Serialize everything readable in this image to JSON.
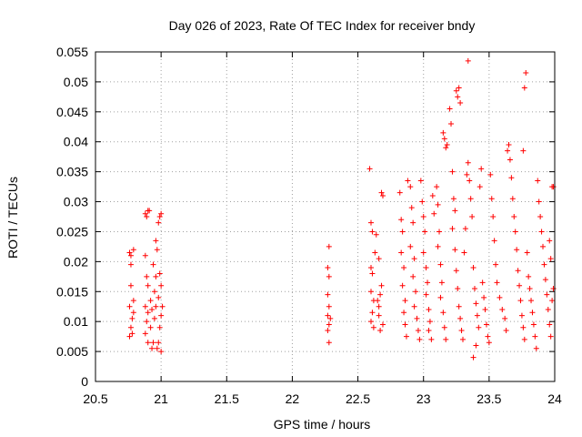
{
  "chart_data": {
    "type": "scatter",
    "title": "Day 026 of 2023, Rate Of TEC Index for receiver bndy",
    "xlabel": "GPS time / hours",
    "ylabel": "ROTI / TECUs",
    "xlim": [
      20.5,
      24
    ],
    "ylim": [
      0,
      0.055
    ],
    "xticks": [
      "20.5",
      "21",
      "21.5",
      "22",
      "22.5",
      "23",
      "23.5",
      "24"
    ],
    "yticks": [
      "0",
      "0.005",
      "0.01",
      "0.015",
      "0.02",
      "0.025",
      "0.03",
      "0.035",
      "0.04",
      "0.045",
      "0.05",
      "0.055"
    ],
    "grid": true,
    "marker": "+",
    "color": "#ff0000",
    "series": [
      {
        "points": [
          [
            20.76,
            0.0215
          ],
          [
            20.77,
            0.021
          ],
          [
            20.77,
            0.016
          ],
          [
            20.76,
            0.0125
          ],
          [
            20.78,
            0.0105
          ],
          [
            20.77,
            0.009
          ],
          [
            20.76,
            0.0075
          ],
          [
            20.78,
            0.008
          ],
          [
            20.79,
            0.022
          ],
          [
            20.79,
            0.0115
          ],
          [
            20.77,
            0.0195
          ],
          [
            20.79,
            0.0135
          ],
          [
            20.88,
            0.028
          ],
          [
            20.89,
            0.0275
          ],
          [
            20.9,
            0.0285
          ],
          [
            20.91,
            0.0285
          ],
          [
            20.88,
            0.021
          ],
          [
            20.89,
            0.0175
          ],
          [
            20.9,
            0.016
          ],
          [
            20.88,
            0.0125
          ],
          [
            20.9,
            0.0115
          ],
          [
            20.89,
            0.01
          ],
          [
            20.88,
            0.008
          ],
          [
            20.9,
            0.0065
          ],
          [
            20.92,
            0.0135
          ],
          [
            20.93,
            0.012
          ],
          [
            20.92,
            0.009
          ],
          [
            20.94,
            0.0065
          ],
          [
            20.93,
            0.0055
          ],
          [
            20.95,
            0.0105
          ],
          [
            20.96,
            0.0125
          ],
          [
            20.95,
            0.015
          ],
          [
            20.96,
            0.0175
          ],
          [
            20.97,
            0.022
          ],
          [
            20.98,
            0.0265
          ],
          [
            20.99,
            0.0275
          ],
          [
            21.0,
            0.028
          ],
          [
            20.99,
            0.018
          ],
          [
            20.98,
            0.014
          ],
          [
            21.0,
            0.011
          ],
          [
            20.99,
            0.009
          ],
          [
            20.98,
            0.0065
          ],
          [
            21.0,
            0.005
          ],
          [
            20.97,
            0.0055
          ],
          [
            21.01,
            0.0125
          ],
          [
            21.0,
            0.016
          ],
          [
            20.96,
            0.0235
          ],
          [
            20.94,
            0.0195
          ],
          [
            22.28,
            0.0225
          ],
          [
            22.27,
            0.019
          ],
          [
            22.28,
            0.0175
          ],
          [
            22.27,
            0.0145
          ],
          [
            22.28,
            0.0125
          ],
          [
            22.27,
            0.011
          ],
          [
            22.28,
            0.0095
          ],
          [
            22.27,
            0.0085
          ],
          [
            22.28,
            0.0065
          ],
          [
            22.29,
            0.0105
          ],
          [
            22.59,
            0.0355
          ],
          [
            22.6,
            0.0265
          ],
          [
            22.61,
            0.025
          ],
          [
            22.6,
            0.019
          ],
          [
            22.61,
            0.018
          ],
          [
            22.6,
            0.015
          ],
          [
            22.62,
            0.0135
          ],
          [
            22.61,
            0.0115
          ],
          [
            22.6,
            0.01
          ],
          [
            22.62,
            0.009
          ],
          [
            22.63,
            0.0215
          ],
          [
            22.64,
            0.0245
          ],
          [
            22.65,
            0.0135
          ],
          [
            22.66,
            0.011
          ],
          [
            22.67,
            0.0085
          ],
          [
            22.66,
            0.0125
          ],
          [
            22.67,
            0.0145
          ],
          [
            22.68,
            0.0315
          ],
          [
            22.69,
            0.031
          ],
          [
            22.68,
            0.016
          ],
          [
            22.69,
            0.0095
          ],
          [
            22.66,
            0.0205
          ],
          [
            22.82,
            0.0315
          ],
          [
            22.83,
            0.027
          ],
          [
            22.84,
            0.025
          ],
          [
            22.83,
            0.0215
          ],
          [
            22.85,
            0.019
          ],
          [
            22.84,
            0.016
          ],
          [
            22.86,
            0.0135
          ],
          [
            22.85,
            0.0115
          ],
          [
            22.86,
            0.0095
          ],
          [
            22.87,
            0.0075
          ],
          [
            22.88,
            0.0335
          ],
          [
            22.9,
            0.0325
          ],
          [
            22.91,
            0.029
          ],
          [
            22.92,
            0.0265
          ],
          [
            22.9,
            0.0225
          ],
          [
            22.93,
            0.0205
          ],
          [
            22.92,
            0.0175
          ],
          [
            22.94,
            0.015
          ],
          [
            22.93,
            0.0125
          ],
          [
            22.95,
            0.0105
          ],
          [
            22.96,
            0.0085
          ],
          [
            22.97,
            0.007
          ],
          [
            22.98,
            0.0335
          ],
          [
            22.99,
            0.03
          ],
          [
            23.0,
            0.0275
          ],
          [
            23.01,
            0.025
          ],
          [
            23.0,
            0.0215
          ],
          [
            23.02,
            0.019
          ],
          [
            23.03,
            0.0165
          ],
          [
            23.02,
            0.0145
          ],
          [
            23.04,
            0.012
          ],
          [
            23.05,
            0.01
          ],
          [
            23.04,
            0.0085
          ],
          [
            23.06,
            0.007
          ],
          [
            23.07,
            0.031
          ],
          [
            23.08,
            0.028
          ],
          [
            23.1,
            0.0325
          ],
          [
            23.11,
            0.0295
          ],
          [
            23.12,
            0.025
          ],
          [
            23.11,
            0.0225
          ],
          [
            23.13,
            0.0195
          ],
          [
            23.14,
            0.0165
          ],
          [
            23.13,
            0.014
          ],
          [
            23.15,
            0.0115
          ],
          [
            23.16,
            0.009
          ],
          [
            23.17,
            0.007
          ],
          [
            23.15,
            0.0415
          ],
          [
            23.16,
            0.0405
          ],
          [
            23.17,
            0.039
          ],
          [
            23.18,
            0.0395
          ],
          [
            23.2,
            0.0455
          ],
          [
            23.21,
            0.043
          ],
          [
            23.22,
            0.035
          ],
          [
            23.23,
            0.0305
          ],
          [
            23.24,
            0.0285
          ],
          [
            23.25,
            0.0485
          ],
          [
            23.26,
            0.0475
          ],
          [
            23.27,
            0.049
          ],
          [
            23.28,
            0.0465
          ],
          [
            23.22,
            0.0255
          ],
          [
            23.24,
            0.022
          ],
          [
            23.25,
            0.0185
          ],
          [
            23.26,
            0.0155
          ],
          [
            23.27,
            0.0125
          ],
          [
            23.28,
            0.0105
          ],
          [
            23.29,
            0.0085
          ],
          [
            23.3,
            0.007
          ],
          [
            23.31,
            0.0215
          ],
          [
            23.32,
            0.0255
          ],
          [
            23.33,
            0.0345
          ],
          [
            23.34,
            0.0365
          ],
          [
            23.35,
            0.0335
          ],
          [
            23.34,
            0.0535
          ],
          [
            23.36,
            0.0305
          ],
          [
            23.37,
            0.0275
          ],
          [
            23.38,
            0.019
          ],
          [
            23.39,
            0.0155
          ],
          [
            23.4,
            0.013
          ],
          [
            23.41,
            0.011
          ],
          [
            23.42,
            0.009
          ],
          [
            23.4,
            0.006
          ],
          [
            23.38,
            0.004
          ],
          [
            23.43,
            0.0325
          ],
          [
            23.44,
            0.0355
          ],
          [
            23.45,
            0.0165
          ],
          [
            23.46,
            0.014
          ],
          [
            23.47,
            0.012
          ],
          [
            23.48,
            0.0095
          ],
          [
            23.49,
            0.0075
          ],
          [
            23.5,
            0.0065
          ],
          [
            23.51,
            0.0345
          ],
          [
            23.52,
            0.0305
          ],
          [
            23.53,
            0.0275
          ],
          [
            23.54,
            0.0235
          ],
          [
            23.55,
            0.0195
          ],
          [
            23.56,
            0.0165
          ],
          [
            23.58,
            0.014
          ],
          [
            23.6,
            0.012
          ],
          [
            23.62,
            0.0105
          ],
          [
            23.63,
            0.0085
          ],
          [
            23.64,
            0.0385
          ],
          [
            23.65,
            0.0395
          ],
          [
            23.66,
            0.037
          ],
          [
            23.67,
            0.034
          ],
          [
            23.68,
            0.0305
          ],
          [
            23.69,
            0.0275
          ],
          [
            23.7,
            0.025
          ],
          [
            23.71,
            0.022
          ],
          [
            23.72,
            0.0185
          ],
          [
            23.73,
            0.016
          ],
          [
            23.74,
            0.0135
          ],
          [
            23.75,
            0.011
          ],
          [
            23.76,
            0.009
          ],
          [
            23.77,
            0.007
          ],
          [
            23.76,
            0.0385
          ],
          [
            23.78,
            0.0515
          ],
          [
            23.77,
            0.049
          ],
          [
            23.79,
            0.0215
          ],
          [
            23.8,
            0.0175
          ],
          [
            23.81,
            0.0155
          ],
          [
            23.82,
            0.0135
          ],
          [
            23.83,
            0.0115
          ],
          [
            23.84,
            0.0095
          ],
          [
            23.85,
            0.0075
          ],
          [
            23.86,
            0.0055
          ],
          [
            23.87,
            0.0335
          ],
          [
            23.88,
            0.03
          ],
          [
            23.89,
            0.0275
          ],
          [
            23.9,
            0.025
          ],
          [
            23.91,
            0.0225
          ],
          [
            23.92,
            0.0195
          ],
          [
            23.93,
            0.017
          ],
          [
            23.94,
            0.0145
          ],
          [
            23.95,
            0.012
          ],
          [
            23.96,
            0.0095
          ],
          [
            23.97,
            0.0075
          ],
          [
            23.98,
            0.0325
          ],
          [
            23.99,
            0.0325
          ],
          [
            23.97,
            0.0205
          ],
          [
            23.96,
            0.0235
          ],
          [
            23.99,
            0.0155
          ],
          [
            23.98,
            0.0135
          ]
        ]
      }
    ]
  }
}
